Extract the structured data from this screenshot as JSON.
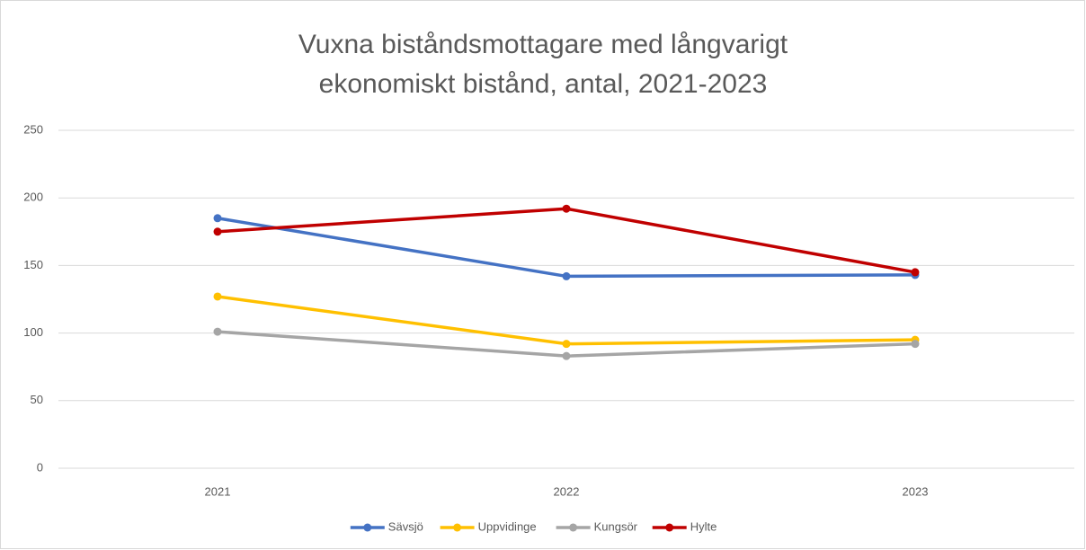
{
  "chart_data": {
    "type": "line",
    "title": "Vuxna biståndsmottagare med långvarigt ekonomiskt bistånd, antal, 2021-2023",
    "categories": [
      "2021",
      "2022",
      "2023"
    ],
    "series": [
      {
        "name": "Sävsjö",
        "color": "#4472c4",
        "values": [
          185,
          142,
          143
        ]
      },
      {
        "name": "Uppvidinge",
        "color": "#ffc000",
        "values": [
          127,
          92,
          95
        ]
      },
      {
        "name": "Kungsör",
        "color": "#a5a5a5",
        "values": [
          101,
          83,
          92
        ]
      },
      {
        "name": "Hylte",
        "color": "#c00000",
        "values": [
          175,
          192,
          145
        ]
      }
    ],
    "ylim": [
      0,
      250
    ],
    "yticks": [
      0,
      50,
      100,
      150,
      200,
      250
    ],
    "grid": true,
    "legend": "bottom"
  }
}
